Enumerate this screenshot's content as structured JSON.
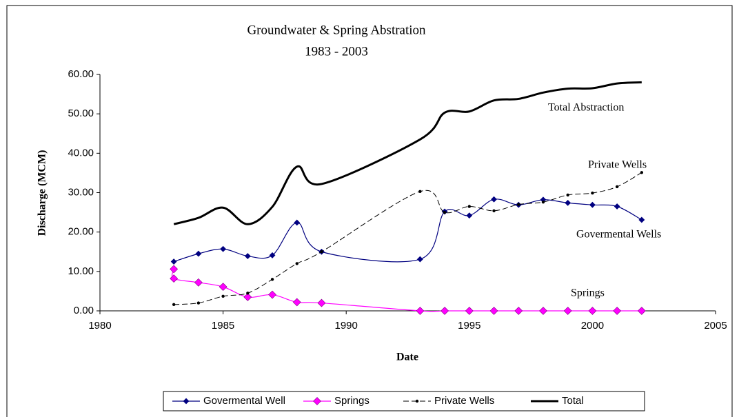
{
  "chart_data": {
    "type": "line",
    "title": "Groundwater & Spring Abstration",
    "subtitle": "1983 - 2003",
    "x_label": "Date",
    "y_label": "Discharge (MCM)",
    "xlim": [
      1980,
      2005
    ],
    "xticks": [
      1980,
      1985,
      1990,
      1995,
      2000,
      2005
    ],
    "ylim": [
      0,
      60
    ],
    "yticks": [
      {
        "value": 0,
        "label": "0.00"
      },
      {
        "value": 10,
        "label": "10.00"
      },
      {
        "value": 20,
        "label": "20.00"
      },
      {
        "value": 30,
        "label": "30.00"
      },
      {
        "value": 40,
        "label": "40.00"
      },
      {
        "value": 50,
        "label": "50.00"
      },
      {
        "value": 60,
        "label": "60.00"
      }
    ],
    "grid": false,
    "legend": "bottom",
    "series": [
      {
        "name": "Govermental Well",
        "color": "#000080",
        "marker": "diamond",
        "line_style": "solid",
        "x": [
          1983,
          1984,
          1985,
          1986,
          1987,
          1988,
          1989,
          1993,
          1994,
          1995,
          1996,
          1997,
          1998,
          1999,
          2000,
          2001,
          2002
        ],
        "values": [
          12.5,
          14.5,
          15.7,
          13.9,
          14.1,
          22.4,
          15.0,
          13.1,
          25.2,
          24.2,
          28.3,
          26.9,
          28.2,
          27.4,
          26.9,
          26.5,
          23.1
        ]
      },
      {
        "name": "Springs",
        "color": "#ff00ff",
        "marker": "big-diamond",
        "line_style": "solid",
        "x": [
          1983,
          1983,
          1984,
          1985,
          1986,
          1987,
          1988,
          1989,
          1993,
          1994,
          1995,
          1996,
          1997,
          1998,
          1999,
          2000,
          2001,
          2002
        ],
        "values": [
          10.6,
          8.2,
          7.2,
          6.1,
          3.5,
          4.1,
          2.2,
          2.0,
          0,
          0,
          0,
          0,
          0,
          0,
          0,
          0,
          0,
          0
        ]
      },
      {
        "name": "Private Wells",
        "color": "#000000",
        "marker": "dot",
        "line_style": "dashed",
        "x": [
          1983,
          1984,
          1985,
          1986,
          1987,
          1988,
          1989,
          1993,
          1994,
          1995,
          1996,
          1997,
          1998,
          1999,
          2000,
          2001,
          2002
        ],
        "values": [
          1.6,
          2.0,
          3.7,
          4.5,
          8.0,
          12.0,
          15.0,
          30.3,
          25.0,
          26.5,
          25.4,
          27.0,
          27.6,
          29.4,
          29.9,
          31.5,
          35.1
        ]
      },
      {
        "name": "Total",
        "color": "#000000",
        "marker": "none",
        "line_style": "thick",
        "x": [
          1983,
          1984,
          1985,
          1986,
          1987,
          1988,
          1989,
          1993,
          1994,
          1995,
          1996,
          1997,
          1998,
          1999,
          2000,
          2001,
          2002
        ],
        "values": [
          22.0,
          23.6,
          26.2,
          22.0,
          26.4,
          36.6,
          32.2,
          43.5,
          50.3,
          50.6,
          53.4,
          53.8,
          55.4,
          56.4,
          56.5,
          57.7,
          58.0
        ]
      }
    ],
    "annotations": [
      "Total Abstraction",
      "Private Wells",
      "Govermental  Wells",
      "Springs"
    ]
  }
}
